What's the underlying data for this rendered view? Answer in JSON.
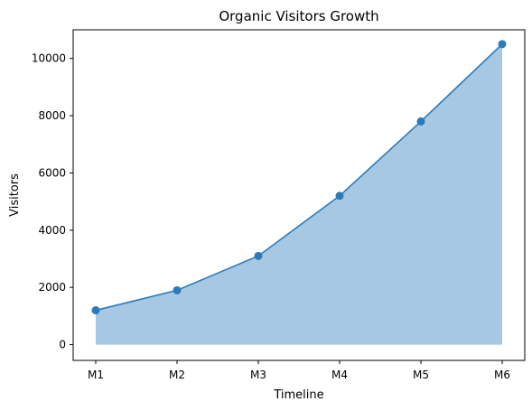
{
  "chart_data": {
    "type": "area",
    "title": "Organic Visitors Growth",
    "xlabel": "Timeline",
    "ylabel": "Visitors",
    "categories": [
      "M1",
      "M2",
      "M3",
      "M4",
      "M5",
      "M6"
    ],
    "values": [
      1200,
      1900,
      3100,
      5200,
      7800,
      10500
    ],
    "ylim": [
      -550,
      11000
    ],
    "yticks": [
      "0",
      "2000",
      "4000",
      "6000",
      "8000",
      "10000"
    ],
    "line_color": "#2b7bba",
    "marker_color": "#2b7bba",
    "fill_color": "#a6c8e2",
    "grid": false,
    "legend": "none"
  }
}
